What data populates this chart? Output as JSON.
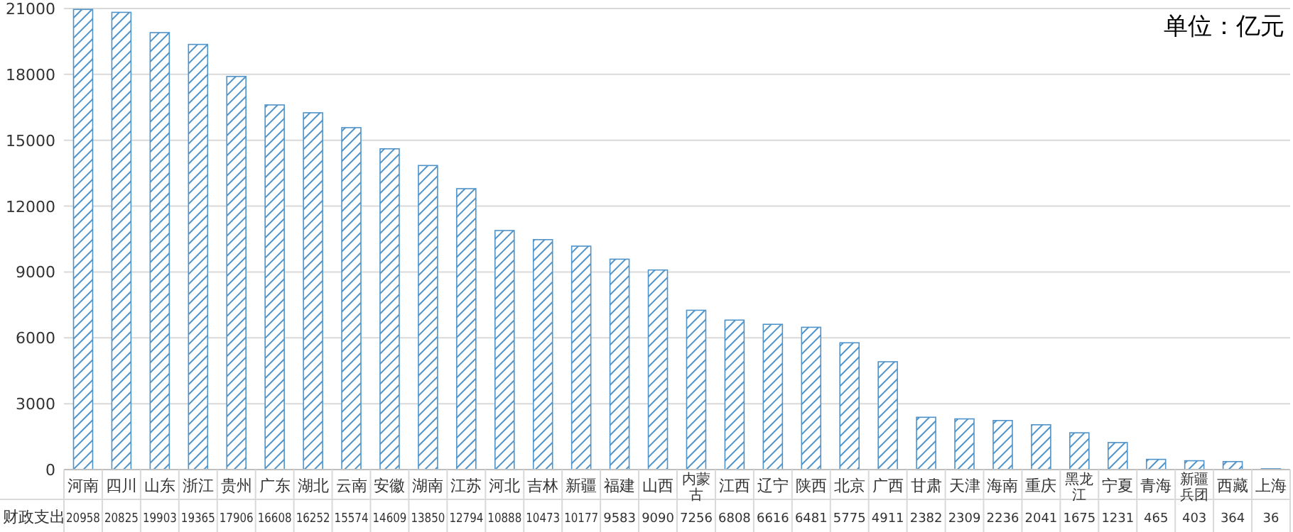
{
  "chart_data": {
    "type": "bar",
    "categories": [
      "河南",
      "四川",
      "山东",
      "浙江",
      "贵州",
      "广东",
      "湖北",
      "云南",
      "安徽",
      "湖南",
      "江苏",
      "河北",
      "吉林",
      "新疆",
      "福建",
      "山西",
      "内蒙古",
      "江西",
      "辽宁",
      "陕西",
      "北京",
      "广西",
      "甘肃",
      "天津",
      "海南",
      "重庆",
      "黑龙江",
      "宁夏",
      "青海",
      "新疆兵团",
      "西藏",
      "上海"
    ],
    "series": [
      {
        "name": "财政支出",
        "color": "#4f93c9",
        "values": [
          20958,
          20825,
          19903,
          19365,
          17906,
          16608,
          16252,
          15574,
          14609,
          13850,
          12794,
          10888,
          10473,
          10177,
          9583,
          9090,
          7256,
          6808,
          6616,
          6481,
          5775,
          4911,
          2382,
          2309,
          2236,
          2041,
          1675,
          1231,
          465,
          403,
          364,
          36
        ]
      }
    ],
    "ylim": [
      0,
      21000
    ],
    "yticks": [
      0,
      3000,
      6000,
      9000,
      12000,
      15000,
      18000,
      21000
    ],
    "grid": "y",
    "data_labels": true,
    "annotations": [
      "单位：亿元"
    ]
  }
}
